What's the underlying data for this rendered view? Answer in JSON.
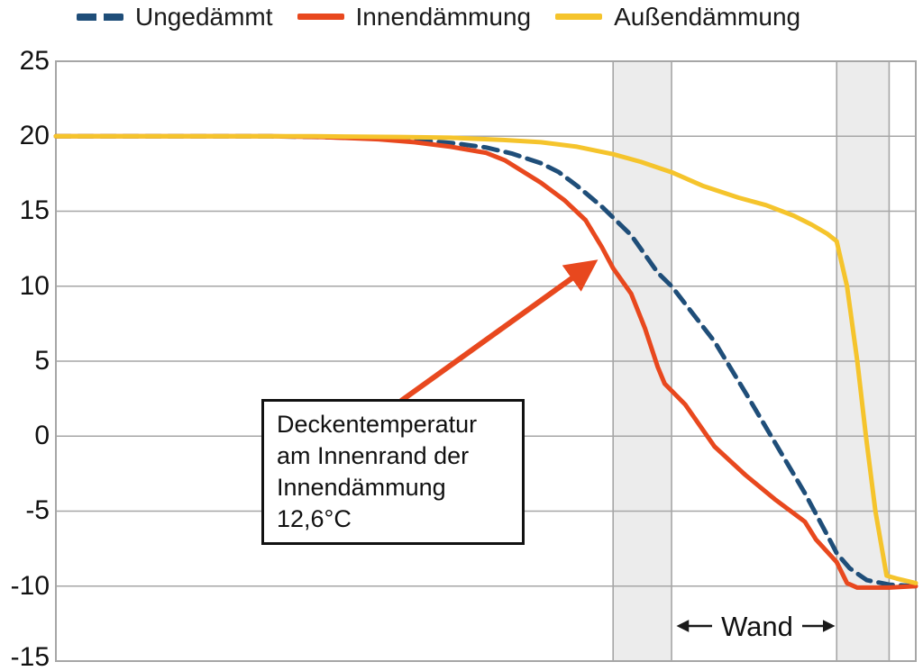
{
  "legend": {
    "items": [
      {
        "label": "Ungedämmt",
        "color": "#1f4e79",
        "style": "dashed"
      },
      {
        "label": "Innendämmung",
        "color": "#e8481e",
        "style": "solid"
      },
      {
        "label": "Außendämmung",
        "color": "#f5c42c",
        "style": "solid"
      }
    ]
  },
  "chart_data": {
    "type": "line",
    "title": "",
    "xlabel": "",
    "ylabel": "",
    "x_unit": "relative position through ceiling/wall construction, 0-100 (x axis unlabeled)",
    "y_unit": "temperature °C",
    "ylim": [
      -15,
      25
    ],
    "yticks": [
      25,
      20,
      15,
      10,
      5,
      0,
      -5,
      -10,
      -15
    ],
    "grid": "horizontal",
    "grid_color": "#a6a6a6",
    "band_fill": "#ececec",
    "wall_bands_x_pct": [
      [
        64.8,
        71.6
      ],
      [
        90.8,
        96.9
      ]
    ],
    "series": [
      {
        "name": "Ungedämmt",
        "color": "#1f4e79",
        "dash": true,
        "points": [
          [
            0,
            20
          ],
          [
            25,
            20
          ],
          [
            35,
            19.9
          ],
          [
            41.7,
            19.75
          ],
          [
            46,
            19.55
          ],
          [
            50,
            19.25
          ],
          [
            53,
            18.85
          ],
          [
            56.4,
            18.2
          ],
          [
            58.5,
            17.6
          ],
          [
            60.6,
            16.7
          ],
          [
            63.5,
            15.3
          ],
          [
            66.9,
            13.4
          ],
          [
            70,
            10.9
          ],
          [
            71.6,
            10.0
          ],
          [
            76.6,
            6.3
          ],
          [
            80.2,
            2.9
          ],
          [
            83.6,
            -0.4
          ],
          [
            87.1,
            -3.8
          ],
          [
            89.9,
            -6.8
          ],
          [
            90.8,
            -7.8
          ],
          [
            92.3,
            -8.8
          ],
          [
            94.3,
            -9.6
          ],
          [
            96.9,
            -9.9
          ],
          [
            100,
            -10
          ]
        ]
      },
      {
        "name": "Innendämmung",
        "color": "#e8481e",
        "dash": false,
        "points": [
          [
            0,
            20
          ],
          [
            25,
            20
          ],
          [
            31,
            19.95
          ],
          [
            37.5,
            19.8
          ],
          [
            41.7,
            19.6
          ],
          [
            45.9,
            19.3
          ],
          [
            50,
            18.9
          ],
          [
            52.2,
            18.4
          ],
          [
            56.4,
            16.9
          ],
          [
            59.2,
            15.7
          ],
          [
            61.6,
            14.4
          ],
          [
            63.5,
            12.6
          ],
          [
            64.8,
            11.2
          ],
          [
            66.9,
            9.5
          ],
          [
            68.5,
            7.2
          ],
          [
            70,
            4.6
          ],
          [
            70.8,
            3.5
          ],
          [
            73.2,
            2.1
          ],
          [
            76.6,
            -0.7
          ],
          [
            80.2,
            -2.6
          ],
          [
            83.6,
            -4.2
          ],
          [
            87.1,
            -5.7
          ],
          [
            88.4,
            -6.9
          ],
          [
            90.8,
            -8.4
          ],
          [
            92,
            -9.8
          ],
          [
            93.2,
            -10.1
          ],
          [
            96.9,
            -10.1
          ],
          [
            100,
            -10
          ]
        ]
      },
      {
        "name": "Außendämmung",
        "color": "#f5c42c",
        "dash": false,
        "points": [
          [
            0,
            20
          ],
          [
            30,
            20
          ],
          [
            40,
            19.95
          ],
          [
            45.9,
            19.9
          ],
          [
            52,
            19.75
          ],
          [
            56.4,
            19.6
          ],
          [
            60.6,
            19.3
          ],
          [
            64.8,
            18.8
          ],
          [
            68,
            18.3
          ],
          [
            71.6,
            17.6
          ],
          [
            75.2,
            16.7
          ],
          [
            79.4,
            15.9
          ],
          [
            82.6,
            15.4
          ],
          [
            85.8,
            14.7
          ],
          [
            87.9,
            14.1
          ],
          [
            89.7,
            13.5
          ],
          [
            90.8,
            13.0
          ],
          [
            92,
            10
          ],
          [
            93.2,
            5
          ],
          [
            94.2,
            0
          ],
          [
            95.3,
            -5
          ],
          [
            96.6,
            -9.3
          ],
          [
            97.8,
            -9.5
          ],
          [
            100,
            -9.8
          ]
        ]
      }
    ],
    "annotation": {
      "lines": [
        "Deckentemperatur",
        "am Innenrand der",
        "Innendämmung",
        "12,6°C"
      ],
      "value_c": 12.6
    },
    "wall_label": "Wand"
  }
}
